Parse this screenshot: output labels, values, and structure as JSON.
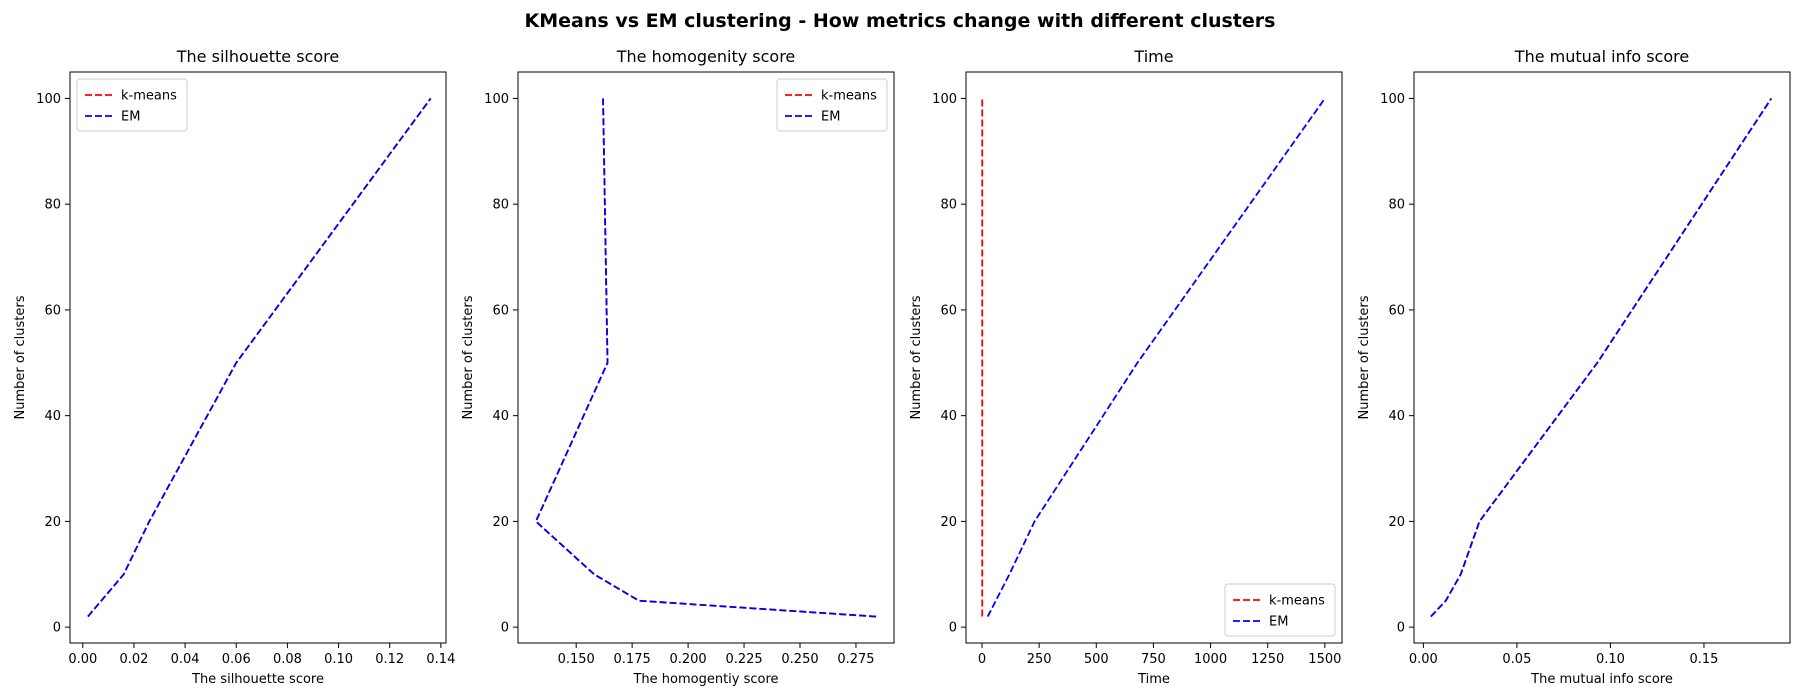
{
  "suptitle": "KMeans vs EM clustering - How metrics change with different clusters",
  "colors": {
    "kmeans": "#ff0000",
    "em": "#0000ff",
    "axes": "#000000",
    "legend_border": "#cccccc"
  },
  "chart_data": [
    {
      "type": "line",
      "title": "The silhouette score",
      "xlabel": "The silhouette score",
      "ylabel": "Number of clusters",
      "xlim": [
        -0.005,
        0.142
      ],
      "ylim": [
        -3,
        105
      ],
      "xticks": [
        0.0,
        0.02,
        0.04,
        0.06,
        0.08,
        0.1,
        0.12,
        0.14
      ],
      "xtick_labels": [
        "0.00",
        "0.02",
        "0.04",
        "0.06",
        "0.08",
        "0.10",
        "0.12",
        "0.14"
      ],
      "yticks": [
        0,
        20,
        40,
        60,
        80,
        100
      ],
      "ytick_labels": [
        "0",
        "20",
        "40",
        "60",
        "80",
        "100"
      ],
      "legend": "upper left",
      "series": [
        {
          "name": "k-means",
          "color": "#ff0000",
          "style": "dashed",
          "x": [
            0.002,
            0.016,
            0.026,
            0.06,
            0.136
          ],
          "y": [
            2,
            10,
            20,
            50,
            100
          ]
        },
        {
          "name": "EM",
          "color": "#0000ff",
          "style": "dashed",
          "x": [
            0.002,
            0.016,
            0.026,
            0.06,
            0.136
          ],
          "y": [
            2,
            10,
            20,
            50,
            100
          ]
        }
      ]
    },
    {
      "type": "line",
      "title": "The homogenity score",
      "xlabel": "The homogentiy score",
      "ylabel": "Number of clusters",
      "xlim": [
        0.124,
        0.292
      ],
      "ylim": [
        -3,
        105
      ],
      "xticks": [
        0.15,
        0.175,
        0.2,
        0.225,
        0.25,
        0.275
      ],
      "xtick_labels": [
        "0.150",
        "0.175",
        "0.200",
        "0.225",
        "0.250",
        "0.275"
      ],
      "yticks": [
        0,
        20,
        40,
        60,
        80,
        100
      ],
      "ytick_labels": [
        "0",
        "20",
        "40",
        "60",
        "80",
        "100"
      ],
      "legend": "upper right",
      "series": [
        {
          "name": "k-means",
          "color": "#ff0000",
          "style": "dashed",
          "x": [
            0.284,
            0.178,
            0.158,
            0.132,
            0.164,
            0.162
          ],
          "y": [
            2,
            5,
            10,
            20,
            50,
            100
          ]
        },
        {
          "name": "EM",
          "color": "#0000ff",
          "style": "dashed",
          "x": [
            0.284,
            0.178,
            0.158,
            0.132,
            0.164,
            0.162
          ],
          "y": [
            2,
            5,
            10,
            20,
            50,
            100
          ]
        }
      ]
    },
    {
      "type": "line",
      "title": "Time",
      "xlabel": "Time",
      "ylabel": "Number of clusters",
      "xlim": [
        -70,
        1575
      ],
      "ylim": [
        -3,
        105
      ],
      "xticks": [
        0,
        250,
        500,
        750,
        1000,
        1250,
        1500
      ],
      "xtick_labels": [
        "0",
        "250",
        "500",
        "750",
        "1000",
        "1250",
        "1500"
      ],
      "yticks": [
        0,
        20,
        40,
        60,
        80,
        100
      ],
      "ytick_labels": [
        "0",
        "20",
        "40",
        "60",
        "80",
        "100"
      ],
      "legend": "lower right",
      "series": [
        {
          "name": "k-means",
          "color": "#ff0000",
          "style": "dashed",
          "x": [
            1,
            1,
            1,
            1,
            1
          ],
          "y": [
            2,
            10,
            20,
            50,
            100
          ]
        },
        {
          "name": "EM",
          "color": "#0000ff",
          "style": "dashed",
          "x": [
            25,
            120,
            230,
            680,
            1500
          ],
          "y": [
            2,
            10,
            20,
            50,
            100
          ]
        }
      ]
    },
    {
      "type": "line",
      "title": "The mutual info score",
      "xlabel": "The mutual info score",
      "ylabel": "Number of clusters",
      "xlim": [
        -0.005,
        0.196
      ],
      "ylim": [
        -3,
        105
      ],
      "xticks": [
        0.0,
        0.05,
        0.1,
        0.15
      ],
      "xtick_labels": [
        "0.00",
        "0.05",
        "0.10",
        "0.15"
      ],
      "yticks": [
        0,
        20,
        40,
        60,
        80,
        100
      ],
      "ytick_labels": [
        "0",
        "20",
        "40",
        "60",
        "80",
        "100"
      ],
      "legend": "none",
      "series": [
        {
          "name": "",
          "color": "#ff0000",
          "style": "dashed",
          "x": [
            0.004,
            0.012,
            0.02,
            0.03,
            0.093,
            0.186
          ],
          "y": [
            2,
            5,
            10,
            20,
            50,
            100
          ]
        },
        {
          "name": "",
          "color": "#0000ff",
          "style": "dashed",
          "x": [
            0.004,
            0.012,
            0.02,
            0.03,
            0.093,
            0.186
          ],
          "y": [
            2,
            5,
            10,
            20,
            50,
            100
          ]
        }
      ]
    }
  ]
}
